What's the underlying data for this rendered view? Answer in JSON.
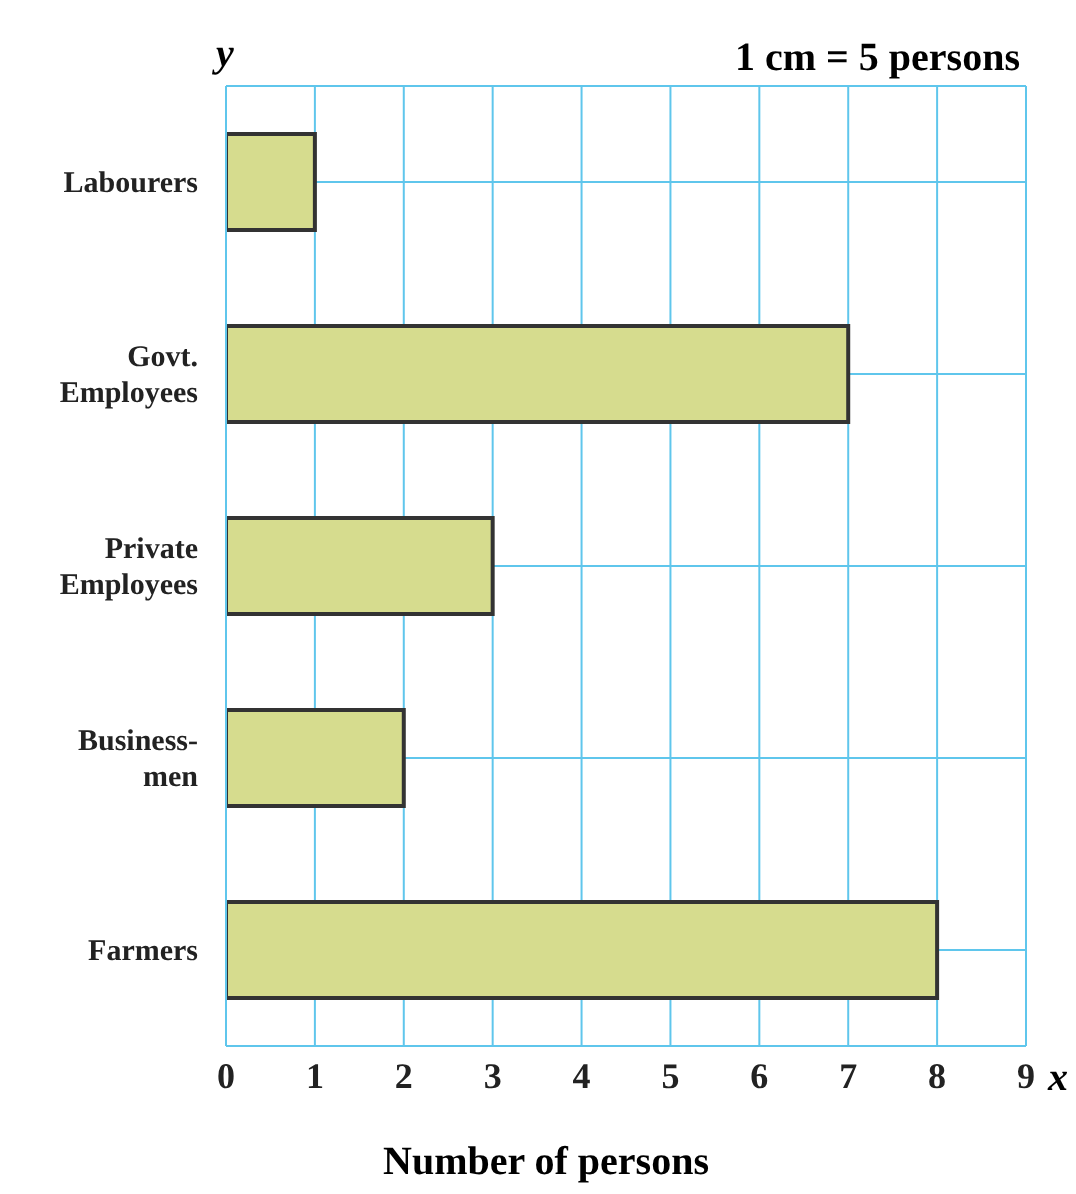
{
  "chart_data": {
    "type": "bar",
    "orientation": "horizontal",
    "categories": [
      "Labourers",
      "Govt. Employees",
      "Private Employees",
      "Business-men",
      "Farmers"
    ],
    "values": [
      1,
      7,
      3,
      2,
      8
    ],
    "color": "#d6dc8e",
    "xlim": [
      0,
      9
    ],
    "xticks": [
      0,
      1,
      2,
      3,
      4,
      5,
      6,
      7,
      8,
      9
    ],
    "xlabel": "Number of persons",
    "ylabel": "y",
    "annotations": [
      "1 cm = 5 persons",
      "x"
    ],
    "grid": true
  }
}
